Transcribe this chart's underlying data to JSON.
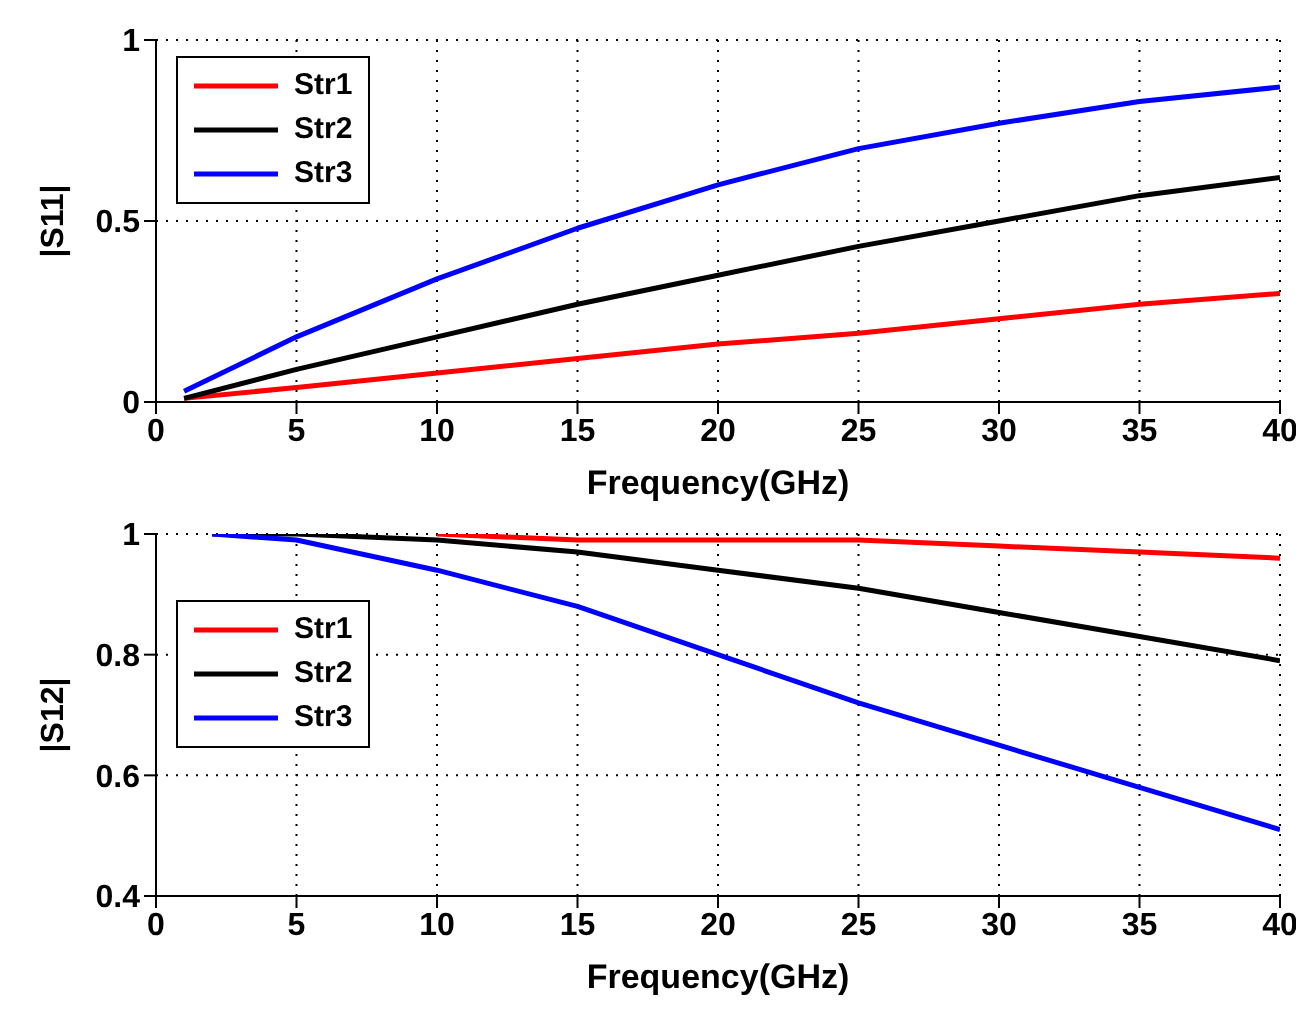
{
  "chart_data": [
    {
      "type": "line",
      "xlabel": "Frequency(GHz)",
      "ylabel": "|S11|",
      "x": [
        1,
        5,
        10,
        15,
        20,
        25,
        30,
        35,
        40
      ],
      "xlim": [
        0,
        40
      ],
      "xticks": [
        0,
        5,
        10,
        15,
        20,
        25,
        30,
        35,
        40
      ],
      "ylim": [
        0,
        1
      ],
      "yticks": [
        0,
        0.5,
        1
      ],
      "grid": true,
      "legend": "top left",
      "line_style": "solid",
      "series": [
        {
          "name": "Str1",
          "color": "#ff0000",
          "values": [
            0.01,
            0.04,
            0.08,
            0.12,
            0.16,
            0.19,
            0.23,
            0.27,
            0.3
          ]
        },
        {
          "name": "Str2",
          "color": "#000000",
          "values": [
            0.01,
            0.09,
            0.18,
            0.27,
            0.35,
            0.43,
            0.5,
            0.57,
            0.62
          ]
        },
        {
          "name": "Str3",
          "color": "#0000ff",
          "values": [
            0.03,
            0.18,
            0.34,
            0.48,
            0.6,
            0.7,
            0.77,
            0.83,
            0.87
          ]
        }
      ]
    },
    {
      "type": "line",
      "xlabel": "Frequency(GHz)",
      "ylabel": "|S12|",
      "x": [
        2,
        5,
        10,
        15,
        20,
        25,
        30,
        35,
        40
      ],
      "xlim": [
        0,
        40
      ],
      "xticks": [
        0,
        5,
        10,
        15,
        20,
        25,
        30,
        35,
        40
      ],
      "ylim": [
        0.4,
        1
      ],
      "yticks": [
        0.4,
        0.6,
        0.8,
        1
      ],
      "grid": true,
      "legend": "left",
      "line_style": "solid",
      "series": [
        {
          "name": "Str1",
          "color": "#ff0000",
          "values": [
            null,
            null,
            1,
            0.99,
            0.99,
            0.99,
            0.98,
            0.97,
            0.96
          ]
        },
        {
          "name": "Str2",
          "color": "#000000",
          "values": [
            1,
            1,
            0.99,
            0.97,
            0.94,
            0.91,
            0.87,
            0.83,
            0.79
          ]
        },
        {
          "name": "Str3",
          "color": "#0000ff",
          "values": [
            1,
            0.99,
            0.94,
            0.88,
            0.8,
            0.72,
            0.65,
            0.58,
            0.51
          ]
        }
      ]
    }
  ]
}
